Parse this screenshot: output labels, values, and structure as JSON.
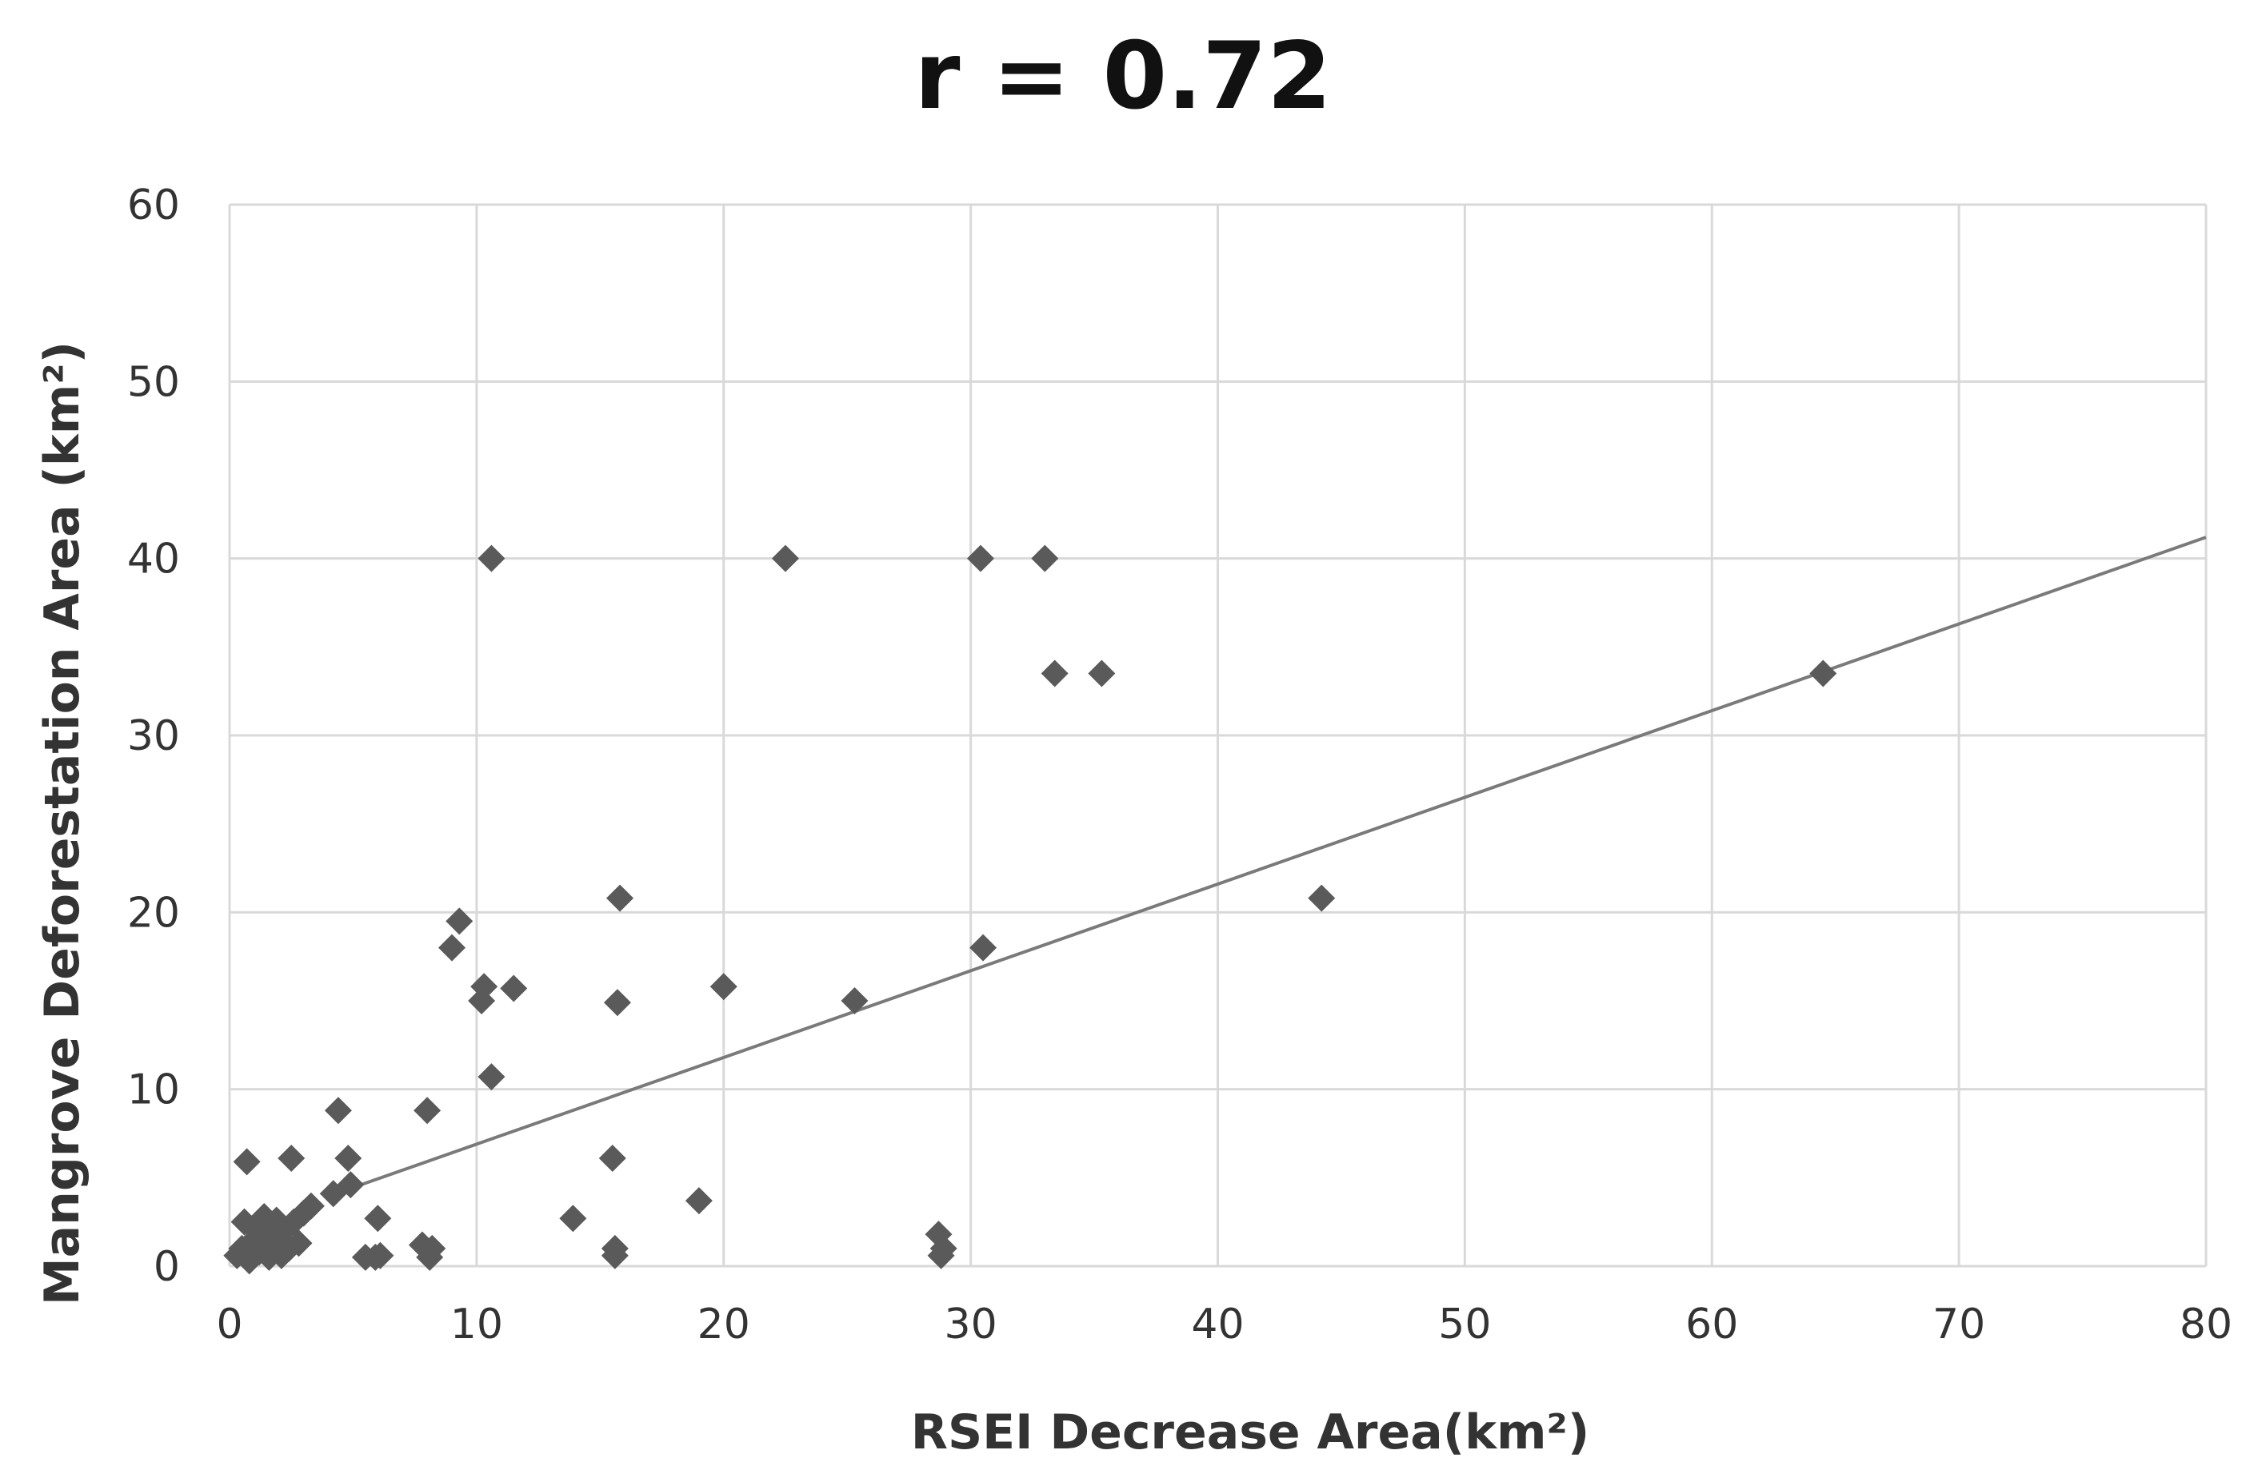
{
  "chart_data": {
    "type": "scatter",
    "title": "r = 0.72",
    "xlabel": "RSEI Decrease Area(km²)",
    "ylabel": "Mangrove Deforestation Area (km²)",
    "xlim": [
      0,
      80
    ],
    "ylim": [
      0,
      60
    ],
    "xticks": [
      "0",
      "10",
      "20",
      "30",
      "40",
      "50",
      "60",
      "70",
      "80"
    ],
    "yticks": [
      "0",
      "10",
      "20",
      "30",
      "40",
      "50",
      "60"
    ],
    "grid": true,
    "marker": "diamond",
    "marker_color": "#5a5a5a",
    "trendline_color": "#7a7a7a",
    "trendline": {
      "x": [
        4.5,
        80
      ],
      "y": [
        4.2,
        41.2
      ]
    },
    "points": [
      {
        "x": 0.3,
        "y": 0.6
      },
      {
        "x": 0.5,
        "y": 1.0
      },
      {
        "x": 0.6,
        "y": 2.5
      },
      {
        "x": 0.7,
        "y": 5.9
      },
      {
        "x": 0.8,
        "y": 0.3
      },
      {
        "x": 1.0,
        "y": 1.5
      },
      {
        "x": 1.1,
        "y": 2.0
      },
      {
        "x": 1.2,
        "y": 0.8
      },
      {
        "x": 1.3,
        "y": 1.2
      },
      {
        "x": 1.4,
        "y": 2.8
      },
      {
        "x": 1.5,
        "y": 1.7
      },
      {
        "x": 1.6,
        "y": 0.5
      },
      {
        "x": 1.7,
        "y": 2.2
      },
      {
        "x": 1.8,
        "y": 1.0
      },
      {
        "x": 1.9,
        "y": 2.6
      },
      {
        "x": 2.0,
        "y": 1.4
      },
      {
        "x": 2.1,
        "y": 0.6
      },
      {
        "x": 2.2,
        "y": 2.0
      },
      {
        "x": 2.4,
        "y": 1.0
      },
      {
        "x": 2.5,
        "y": 6.1
      },
      {
        "x": 2.6,
        "y": 2.5
      },
      {
        "x": 2.8,
        "y": 1.3
      },
      {
        "x": 3.0,
        "y": 3.0
      },
      {
        "x": 3.3,
        "y": 3.4
      },
      {
        "x": 4.2,
        "y": 4.1
      },
      {
        "x": 4.4,
        "y": 8.8
      },
      {
        "x": 4.8,
        "y": 6.1
      },
      {
        "x": 4.9,
        "y": 4.6
      },
      {
        "x": 5.5,
        "y": 0.5
      },
      {
        "x": 5.9,
        "y": 0.5
      },
      {
        "x": 6.0,
        "y": 2.7
      },
      {
        "x": 6.1,
        "y": 0.6
      },
      {
        "x": 7.8,
        "y": 1.2
      },
      {
        "x": 8.0,
        "y": 8.8
      },
      {
        "x": 8.1,
        "y": 0.5
      },
      {
        "x": 8.2,
        "y": 1.0
      },
      {
        "x": 9.0,
        "y": 18.0
      },
      {
        "x": 9.3,
        "y": 19.5
      },
      {
        "x": 10.2,
        "y": 15.0
      },
      {
        "x": 10.3,
        "y": 15.8
      },
      {
        "x": 10.6,
        "y": 40.0
      },
      {
        "x": 10.6,
        "y": 10.7
      },
      {
        "x": 11.5,
        "y": 15.7
      },
      {
        "x": 13.9,
        "y": 2.7
      },
      {
        "x": 15.5,
        "y": 6.1
      },
      {
        "x": 15.6,
        "y": 1.0
      },
      {
        "x": 15.6,
        "y": 0.6
      },
      {
        "x": 15.7,
        "y": 14.9
      },
      {
        "x": 15.8,
        "y": 20.8
      },
      {
        "x": 19.0,
        "y": 3.7
      },
      {
        "x": 20.0,
        "y": 15.8
      },
      {
        "x": 22.5,
        "y": 40.0
      },
      {
        "x": 25.3,
        "y": 15.0
      },
      {
        "x": 28.7,
        "y": 1.8
      },
      {
        "x": 28.8,
        "y": 0.6
      },
      {
        "x": 28.9,
        "y": 1.0
      },
      {
        "x": 30.4,
        "y": 40.0
      },
      {
        "x": 30.5,
        "y": 18.0
      },
      {
        "x": 33.0,
        "y": 40.0
      },
      {
        "x": 33.4,
        "y": 33.5
      },
      {
        "x": 35.3,
        "y": 33.5
      },
      {
        "x": 44.2,
        "y": 20.8
      },
      {
        "x": 64.5,
        "y": 33.5
      }
    ]
  }
}
